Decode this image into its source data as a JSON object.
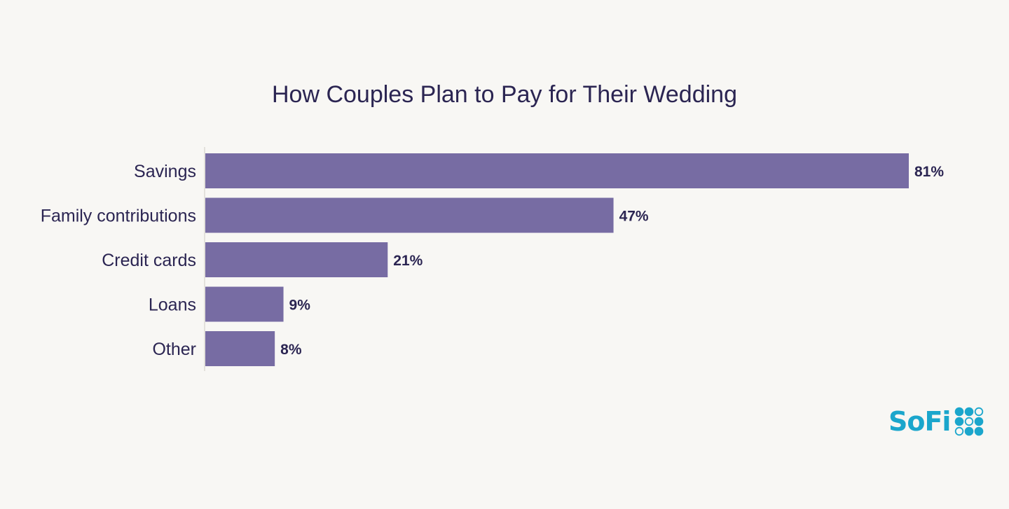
{
  "chart_data": {
    "type": "bar",
    "orientation": "horizontal",
    "title": "How Couples Plan to Pay for Their Wedding",
    "categories": [
      "Savings",
      "Family contributions",
      "Credit cards",
      "Loans",
      "Other"
    ],
    "values": [
      81,
      47,
      21,
      9,
      8
    ],
    "value_labels": [
      "81%",
      "47%",
      "21%",
      "9%",
      "8%"
    ],
    "unit": "%",
    "xlim": [
      0,
      81
    ],
    "grid": false,
    "bar_color": "#776ca3",
    "label_color": "#2b2552"
  },
  "brand": {
    "logo_text": "SoFi",
    "color": "#1ba6cc"
  }
}
